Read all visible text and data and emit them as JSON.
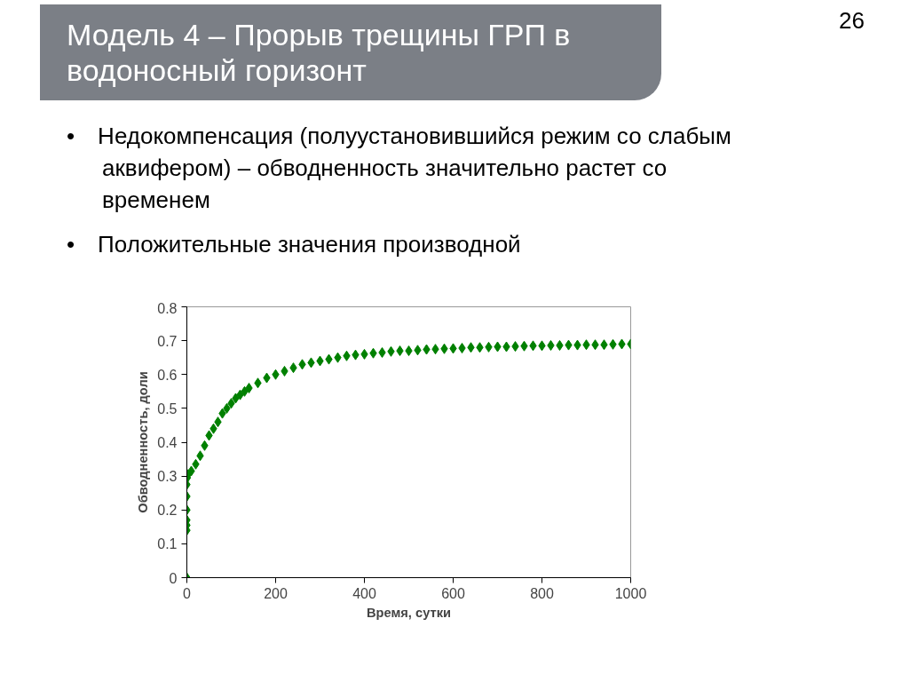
{
  "chart_data": {
    "type": "scatter",
    "title": "Модель 4 – Прорыв трещины ГРП в водоносный горизонт",
    "annotations": [
      "• Недокомпенсация (полуустановившийся режим со слабым аквифером) – обводненность значительно растет со временем",
      "• Положительные значения производной",
      "26"
    ],
    "xlabel": "Время, сутки",
    "ylabel": "Обводненность, доли",
    "series": [
      {
        "color": "#008000",
        "x": [
          0,
          0,
          0,
          0,
          0,
          0,
          0,
          1,
          3,
          10,
          20,
          30,
          40,
          50,
          60,
          70,
          80,
          90,
          100,
          110,
          120,
          130,
          140,
          160,
          180,
          200,
          220,
          240,
          260,
          280,
          300,
          320,
          340,
          360,
          380,
          400,
          420,
          440,
          460,
          480,
          500,
          520,
          540,
          560,
          580,
          600,
          620,
          640,
          660,
          680,
          700,
          720,
          740,
          760,
          780,
          800,
          820,
          840,
          860,
          880,
          900,
          920,
          940,
          960,
          980,
          1000
        ],
        "values": [
          0,
          0.14,
          0.155,
          0.17,
          0.2,
          0.24,
          0.275,
          0.295,
          0.305,
          0.315,
          0.335,
          0.36,
          0.39,
          0.42,
          0.44,
          0.46,
          0.485,
          0.5,
          0.515,
          0.53,
          0.54,
          0.55,
          0.56,
          0.575,
          0.59,
          0.6,
          0.61,
          0.62,
          0.63,
          0.635,
          0.64,
          0.645,
          0.65,
          0.655,
          0.658,
          0.66,
          0.663,
          0.665,
          0.668,
          0.67,
          0.67,
          0.672,
          0.674,
          0.675,
          0.676,
          0.677,
          0.678,
          0.68,
          0.68,
          0.681,
          0.682,
          0.682,
          0.683,
          0.684,
          0.685,
          0.685,
          0.686,
          0.686,
          0.687,
          0.687,
          0.688,
          0.688,
          0.688,
          0.689,
          0.69,
          0.69
        ]
      }
    ],
    "xlim": [
      0,
      1000
    ],
    "ylim": [
      0,
      0.8
    ],
    "xticks": [
      0,
      200,
      400,
      600,
      800,
      1000
    ],
    "yticks": [
      0,
      0.1,
      0.2,
      0.3,
      0.4,
      0.5,
      0.6,
      0.7,
      0.8
    ],
    "marker": "diamond",
    "grid": false
  }
}
